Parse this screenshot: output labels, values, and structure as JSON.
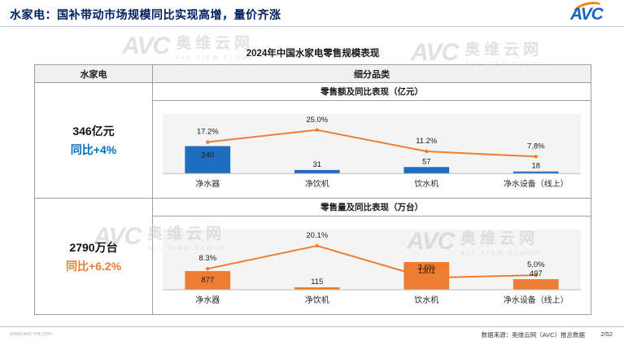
{
  "header": {
    "title": "水家电：国补带动市场规模同比实现高增，量价齐涨",
    "logo_text": "AVC"
  },
  "watermark": {
    "logo": "AVC",
    "name": "奥维云网",
    "sub": "ALL VIEW CLOUD"
  },
  "table": {
    "title": "2024年中国水家电零售规模表现",
    "col_left": "水家电",
    "col_right": "细分品类",
    "sections": [
      {
        "subheader": "零售额及同比表现（亿元）",
        "value": "346亿元",
        "yoy": "同比+4%",
        "accent_color": "#0070C0"
      },
      {
        "subheader": "零售量及同比表现（万台）",
        "value": "2790万台",
        "yoy": "同比+6.2%",
        "accent_color": "#ED7D31"
      }
    ]
  },
  "chart_data": [
    {
      "type": "bar",
      "subtype": "bar+line combo",
      "title": "零售额及同比表现（亿元）",
      "categories": [
        "净水器",
        "净饮机",
        "饮水机",
        "净水设备（线上）"
      ],
      "series": [
        {
          "name": "零售额（亿元）",
          "type": "bar",
          "color": "#1E6DBE",
          "values": [
            240,
            31,
            57,
            18
          ]
        },
        {
          "name": "同比",
          "type": "line",
          "color": "#ED7D31",
          "unit": "%",
          "values": [
            17.2,
            25.0,
            11.2,
            7.8
          ]
        }
      ],
      "legend": "off",
      "grid": "off"
    },
    {
      "type": "bar",
      "subtype": "bar+line combo",
      "title": "零售量及同比表现（万台）",
      "categories": [
        "净水器",
        "净饮机",
        "饮水机",
        "净水设备（线上）"
      ],
      "series": [
        {
          "name": "零售量（万台）",
          "type": "bar",
          "color": "#ED7D31",
          "values": [
            877,
            115,
            1301,
            497
          ]
        },
        {
          "name": "同比",
          "type": "line",
          "color": "#ED7D31",
          "unit": "%",
          "values": [
            8.3,
            20.1,
            3.6,
            5.0
          ]
        }
      ],
      "legend": "off",
      "grid": "off"
    }
  ],
  "footer": {
    "site": "www.avc-mr.com",
    "source": "数据来源：奥维云网（AVC）推总数据",
    "page": "2/52"
  }
}
